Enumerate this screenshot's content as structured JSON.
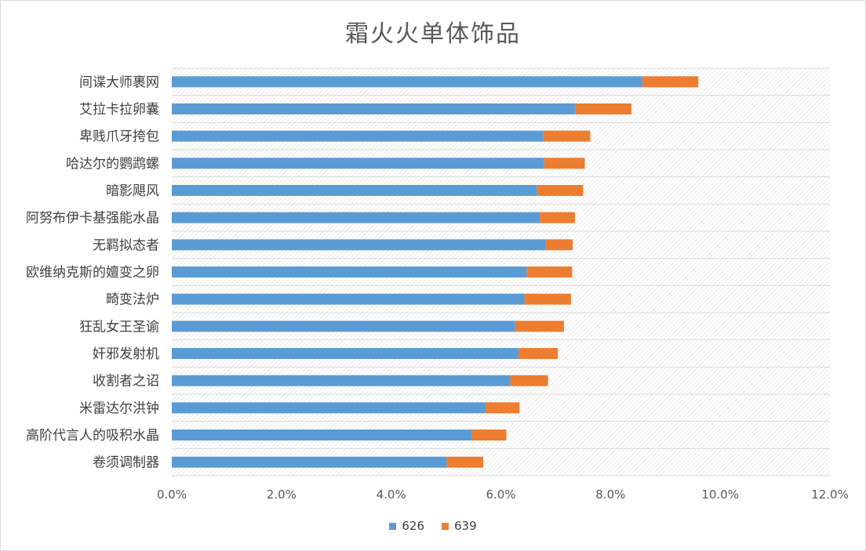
{
  "title": "霜火火单体饰品",
  "colors": {
    "s626": "#5b9bd5",
    "s639": "#ed7d31"
  },
  "chart_data": {
    "type": "bar",
    "orientation": "horizontal",
    "stacked": true,
    "title": "霜火火单体饰品",
    "categories": [
      "间谍大师裹网",
      "艾拉卡拉卵囊",
      "卑贱爪牙挎包",
      "哈达尔的鹦鹉螺",
      "暗影飓风",
      "阿努布伊卡基强能水晶",
      "无羁拟态者",
      "欧维纳克斯的嬗变之卵",
      "畸变法炉",
      "狂乱女王圣谕",
      "奸邪发射机",
      "收割者之诏",
      "米雷达尔洪钟",
      "高阶代言人的吸积水晶",
      "卷须调制器"
    ],
    "series": [
      {
        "name": "626",
        "values": [
          0.0858,
          0.0735,
          0.0677,
          0.0679,
          0.0666,
          0.0671,
          0.0682,
          0.0647,
          0.0643,
          0.0626,
          0.0632,
          0.0617,
          0.0572,
          0.0547,
          0.0501
        ]
      },
      {
        "name": "639",
        "values": [
          0.0102,
          0.0103,
          0.0086,
          0.0074,
          0.0084,
          0.0064,
          0.0049,
          0.0083,
          0.0085,
          0.0089,
          0.0072,
          0.0069,
          0.0062,
          0.0063,
          0.0067
        ]
      }
    ],
    "xlim": [
      0,
      0.12
    ],
    "xticks": [
      "0.0%",
      "2.0%",
      "4.0%",
      "6.0%",
      "8.0%",
      "10.0%",
      "12.0%"
    ],
    "legend_position": "bottom",
    "background_pattern": true
  }
}
